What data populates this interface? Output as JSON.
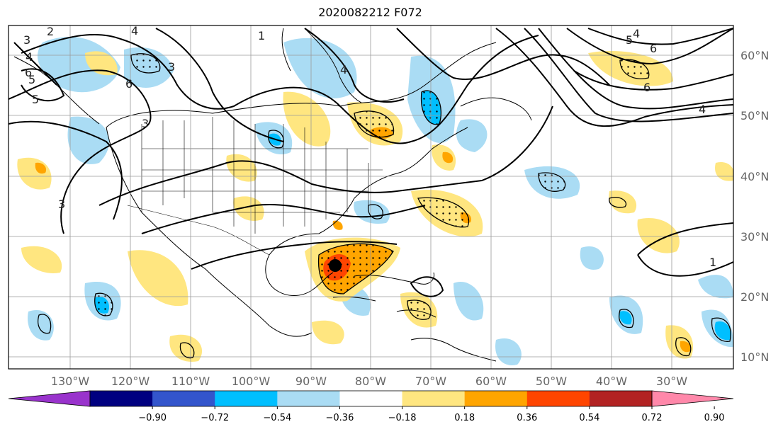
{
  "title": "2020082212 F072",
  "lat_labels": [
    "60°N",
    "50°N",
    "40°N",
    "30°N",
    "20°N",
    "10°N"
  ],
  "lon_labels": [
    "130°W",
    "120°W",
    "110°W",
    "100°W",
    "90°W",
    "80°W",
    "70°W",
    "60°W",
    "50°W",
    "40°W",
    "30°W"
  ],
  "colorbar": {
    "tick_labels": [
      "−0.90",
      "−0.72",
      "−0.54",
      "−0.36",
      "−0.18",
      "0.18",
      "0.36",
      "0.54",
      "0.72",
      "0.90"
    ],
    "colors": [
      "#9933cc",
      "#000080",
      "#3355cc",
      "#00bfff",
      "#aadcf4",
      "#ffffff",
      "#ffe680",
      "#ffa500",
      "#ff4500",
      "#b22222",
      "#ff88aa"
    ]
  },
  "contour_labels": [
    "2",
    "3",
    "4",
    "5",
    "6",
    "1",
    "3",
    "4",
    "6",
    "4",
    "5",
    "6",
    "6",
    "4",
    "1",
    "3",
    "5",
    "4",
    "3"
  ],
  "storm_marker": {
    "label": "storm-center",
    "lon": -86.5,
    "lat": 25.0
  }
}
